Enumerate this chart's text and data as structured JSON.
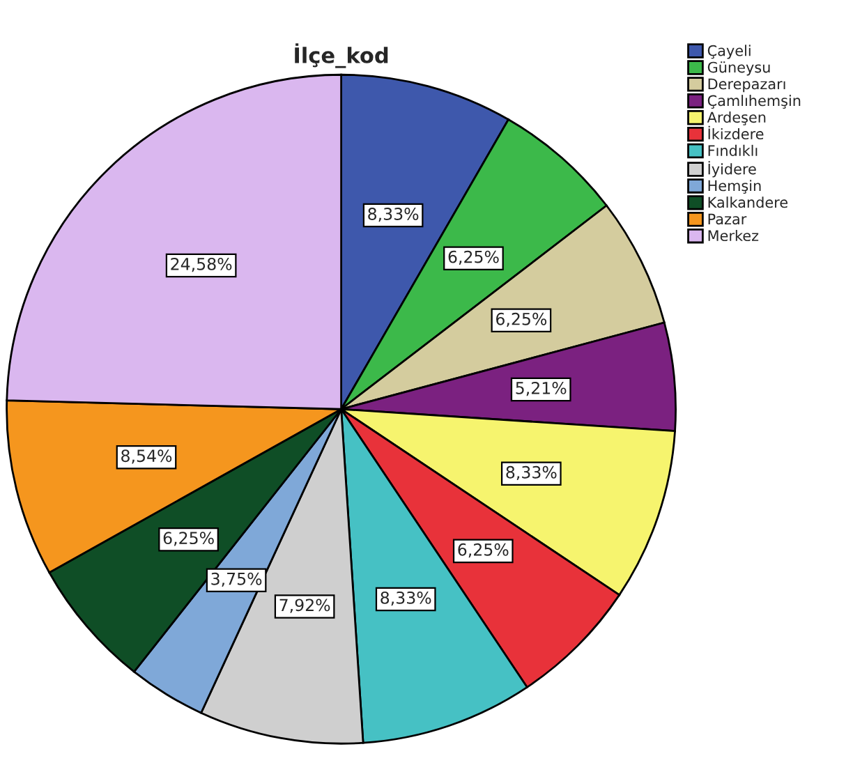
{
  "chart_data": {
    "type": "pie",
    "title": "İlçe_kod",
    "categories": [
      "Çayeli",
      "Güneysu",
      "Derepazarı",
      "Çamlıhemşin",
      "Ardeşen",
      "İkizdere",
      "Fındıklı",
      "İyidere",
      "Hemşin",
      "Kalkandere",
      "Pazar",
      "Merkez"
    ],
    "values": [
      8.33,
      6.25,
      6.25,
      5.21,
      8.33,
      6.25,
      8.33,
      7.92,
      3.75,
      6.25,
      8.54,
      24.58
    ],
    "value_labels": [
      "8,33%",
      "6,25%",
      "6,25%",
      "5,21%",
      "8,33%",
      "6,25%",
      "8,33%",
      "7,92%",
      "3,75%",
      "6,25%",
      "8,54%",
      "24,58%"
    ],
    "colors": [
      "#3e58ac",
      "#3cb94a",
      "#d4cc9e",
      "#7b2180",
      "#f6f46e",
      "#e8323a",
      "#46c1c4",
      "#cfcfcf",
      "#7fa8d8",
      "#0f4e26",
      "#f5961e",
      "#dab7ef"
    ],
    "legend": "right"
  }
}
